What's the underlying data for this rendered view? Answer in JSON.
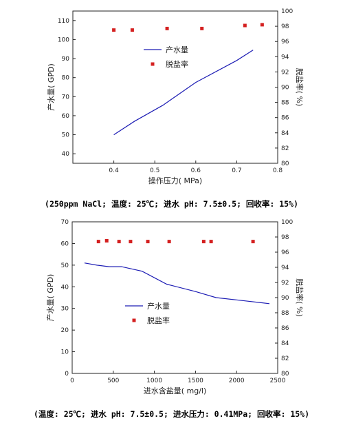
{
  "chart_data": [
    {
      "type": "line",
      "xlabel": "操作压力( MPa)",
      "ylabel_left": "产水量(  GPD)",
      "ylabel_right": "脱盐率(  %)",
      "xlim": [
        0.3,
        0.8
      ],
      "ylim_left": [
        35,
        115
      ],
      "ylim_right": [
        80,
        100
      ],
      "x_ticks": [
        "0.4",
        "0.5",
        "0.6",
        "0.7",
        "0.8"
      ],
      "x_tick_values": [
        0.4,
        0.5,
        0.6,
        0.7,
        0.8
      ],
      "y_left_ticks": [
        "40",
        "50",
        "60",
        "70",
        "80",
        "90",
        "100",
        "110"
      ],
      "y_left_tick_values": [
        40,
        50,
        60,
        70,
        80,
        90,
        100,
        110
      ],
      "y_right_ticks": [
        "80",
        "82",
        "84",
        "86",
        "88",
        "90",
        "92",
        "94",
        "96",
        "98",
        "100"
      ],
      "y_right_tick_values": [
        80,
        82,
        84,
        86,
        88,
        90,
        92,
        94,
        96,
        98,
        100
      ],
      "legend_position": "top-right",
      "legend": [
        {
          "name": "产水量",
          "kind": "line",
          "color": "#1c1cb4"
        },
        {
          "name": "脱盐率",
          "kind": "marker",
          "color": "#d42020"
        }
      ],
      "series": [
        {
          "name": "产水量",
          "axis": "left",
          "kind": "line",
          "color": "#1c1cb4",
          "x": [
            0.4,
            0.45,
            0.52,
            0.6,
            0.7,
            0.74
          ],
          "y": [
            50,
            57,
            65.5,
            77.5,
            89,
            94.5
          ]
        },
        {
          "name": "脱盐率",
          "axis": "right",
          "kind": "marker",
          "color": "#d42020",
          "x": [
            0.4,
            0.445,
            0.53,
            0.615,
            0.72,
            0.762
          ],
          "y": [
            97.5,
            97.5,
            97.7,
            97.7,
            98.1,
            98.2
          ]
        }
      ],
      "caption": "(250ppm NaCl; 温度: 25℃; 进水 pH: 7.5±0.5; 回收率: 15%)"
    },
    {
      "type": "line",
      "xlabel": "进水含盐量( mg/l)",
      "ylabel_left": "产水量(  GPD)",
      "ylabel_right": "脱盐率(  %)",
      "xlim": [
        0,
        2500
      ],
      "ylim_left": [
        0,
        70
      ],
      "ylim_right": [
        80,
        100
      ],
      "x_ticks": [
        "0",
        "500",
        "1000",
        "1500",
        "2000",
        "2500"
      ],
      "x_tick_values": [
        0,
        500,
        1000,
        1500,
        2000,
        2500
      ],
      "y_left_ticks": [
        "0",
        "10",
        "20",
        "30",
        "40",
        "50",
        "60",
        "70"
      ],
      "y_left_tick_values": [
        0,
        10,
        20,
        30,
        40,
        50,
        60,
        70
      ],
      "y_right_ticks": [
        "80",
        "82",
        "84",
        "86",
        "88",
        "90",
        "92",
        "94",
        "96",
        "98",
        "100"
      ],
      "y_right_tick_values": [
        80,
        82,
        84,
        86,
        88,
        90,
        92,
        94,
        96,
        98,
        100
      ],
      "legend_position": "center",
      "legend": [
        {
          "name": "产水量",
          "kind": "line",
          "color": "#1c1cb4"
        },
        {
          "name": "脱盐率",
          "kind": "marker",
          "color": "#d42020"
        }
      ],
      "series": [
        {
          "name": "产水量",
          "axis": "left",
          "kind": "line",
          "color": "#1c1cb4",
          "x": [
            150,
            300,
            450,
            600,
            850,
            1150,
            1500,
            1750,
            2100,
            2400
          ],
          "y": [
            51,
            50,
            49.3,
            49.3,
            47.2,
            41.2,
            37.8,
            35,
            33.5,
            32.2
          ]
        },
        {
          "name": "脱盐率",
          "axis": "right",
          "kind": "marker",
          "color": "#d42020",
          "x": [
            320,
            420,
            570,
            710,
            920,
            1180,
            1600,
            1690,
            2200
          ],
          "y": [
            97.4,
            97.5,
            97.4,
            97.4,
            97.4,
            97.4,
            97.4,
            97.4,
            97.4
          ]
        }
      ],
      "caption": "(温度: 25℃; 进水 pH: 7.5±0.5; 进水压力: 0.41MPa; 回收率: 15%)"
    }
  ]
}
